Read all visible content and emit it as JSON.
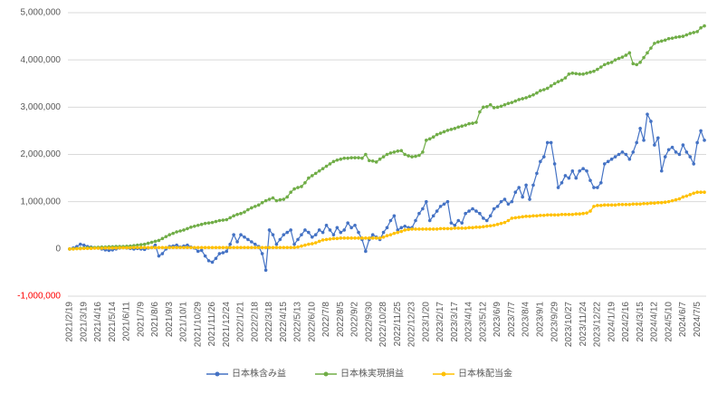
{
  "chart_data": {
    "type": "line",
    "categories": [
      "2021/2/19",
      null,
      null,
      null,
      "2021/3/19",
      null,
      null,
      null,
      "2021/4/16",
      null,
      null,
      null,
      "2021/5/14",
      null,
      null,
      null,
      "2021/6/11",
      null,
      null,
      null,
      "2021/7/9",
      null,
      null,
      null,
      "2021/8/6",
      null,
      null,
      null,
      "2021/9/3",
      null,
      null,
      null,
      "2021/10/1",
      null,
      null,
      null,
      "2021/10/29",
      null,
      null,
      null,
      "2021/11/26",
      null,
      null,
      null,
      "2021/12/24",
      null,
      null,
      null,
      "2022/1/21",
      null,
      null,
      null,
      "2022/2/18",
      null,
      null,
      null,
      "2022/3/18",
      null,
      null,
      null,
      "2022/4/15",
      null,
      null,
      null,
      "2022/5/13",
      null,
      null,
      null,
      "2022/6/10",
      null,
      null,
      null,
      "2022/7/8",
      null,
      null,
      null,
      "2022/8/5",
      null,
      null,
      null,
      "2022/9/2",
      null,
      null,
      null,
      "2022/9/30",
      null,
      null,
      null,
      "2022/10/28",
      null,
      null,
      null,
      "2022/11/25",
      null,
      null,
      null,
      "2022/12/23",
      null,
      null,
      null,
      "2023/1/20",
      null,
      null,
      null,
      "2023/2/17",
      null,
      null,
      null,
      "2023/3/17",
      null,
      null,
      null,
      "2023/4/14",
      null,
      null,
      null,
      "2023/5/12",
      null,
      null,
      null,
      "2023/6/9",
      null,
      null,
      null,
      "2023/7/7",
      null,
      null,
      null,
      "2023/8/4",
      null,
      null,
      null,
      "2023/9/1",
      null,
      null,
      null,
      "2023/9/29",
      null,
      null,
      null,
      "2023/10/27",
      null,
      null,
      null,
      "2023/11/24",
      null,
      null,
      null,
      "2023/12/22",
      null,
      null,
      null,
      "2024/1/19",
      null,
      null,
      null,
      "2024/2/16",
      null,
      null,
      null,
      "2024/3/15",
      null,
      null,
      null,
      "2024/4/12",
      null,
      null,
      null,
      "2024/5/10",
      null,
      null,
      null,
      "2024/6/7",
      null,
      null,
      null,
      "2024/7/5",
      null,
      null
    ],
    "series": [
      {
        "name": "日本株含み益",
        "color": "#4472c4",
        "values": [
          0,
          20000,
          50000,
          100000,
          80000,
          50000,
          40000,
          30000,
          20000,
          0,
          -20000,
          -30000,
          -20000,
          0,
          20000,
          30000,
          20000,
          10000,
          0,
          10000,
          0,
          -10000,
          20000,
          30000,
          80000,
          -150000,
          -100000,
          0,
          50000,
          60000,
          80000,
          40000,
          60000,
          80000,
          40000,
          20000,
          -50000,
          -30000,
          -150000,
          -250000,
          -280000,
          -200000,
          -100000,
          -80000,
          -50000,
          100000,
          300000,
          150000,
          300000,
          250000,
          200000,
          150000,
          100000,
          50000,
          -100000,
          -450000,
          400000,
          300000,
          100000,
          200000,
          300000,
          350000,
          400000,
          100000,
          200000,
          300000,
          400000,
          350000,
          250000,
          300000,
          400000,
          350000,
          500000,
          400000,
          300000,
          450000,
          350000,
          400000,
          550000,
          450000,
          500000,
          350000,
          200000,
          -50000,
          200000,
          300000,
          250000,
          200000,
          350000,
          450000,
          600000,
          700000,
          400000,
          450000,
          480000,
          450000,
          450000,
          600000,
          750000,
          850000,
          1000000,
          600000,
          700000,
          800000,
          900000,
          950000,
          1000000,
          550000,
          500000,
          600000,
          550000,
          750000,
          800000,
          850000,
          800000,
          750000,
          650000,
          600000,
          700000,
          850000,
          900000,
          1000000,
          1050000,
          950000,
          1000000,
          1200000,
          1300000,
          1100000,
          1350000,
          1050000,
          1350000,
          1600000,
          1850000,
          1950000,
          2250000,
          2250000,
          1800000,
          1300000,
          1400000,
          1550000,
          1500000,
          1650000,
          1500000,
          1650000,
          1700000,
          1650000,
          1450000,
          1300000,
          1300000,
          1400000,
          1800000,
          1850000,
          1900000,
          1950000,
          2000000,
          2050000,
          2000000,
          1900000,
          2050000,
          2250000,
          2550000,
          2300000,
          2850000,
          2700000,
          2200000,
          2350000,
          1650000,
          1950000,
          2100000,
          2150000,
          2050000,
          2000000,
          2200000,
          2050000,
          1950000,
          1800000,
          2250000,
          2500000,
          2300000
        ]
      },
      {
        "name": "日本株実現損益",
        "color": "#70ad47",
        "values": [
          0,
          5000,
          10000,
          15000,
          20000,
          25000,
          30000,
          30000,
          35000,
          40000,
          40000,
          45000,
          45000,
          50000,
          50000,
          50000,
          55000,
          60000,
          70000,
          80000,
          90000,
          100000,
          120000,
          140000,
          160000,
          180000,
          220000,
          260000,
          300000,
          330000,
          360000,
          380000,
          400000,
          430000,
          460000,
          480000,
          500000,
          520000,
          540000,
          550000,
          560000,
          580000,
          600000,
          610000,
          620000,
          660000,
          700000,
          730000,
          750000,
          780000,
          830000,
          870000,
          900000,
          930000,
          980000,
          1020000,
          1050000,
          1080000,
          1020000,
          1040000,
          1050000,
          1100000,
          1200000,
          1270000,
          1300000,
          1320000,
          1400000,
          1500000,
          1550000,
          1600000,
          1650000,
          1700000,
          1750000,
          1800000,
          1850000,
          1880000,
          1900000,
          1920000,
          1920000,
          1930000,
          1930000,
          1930000,
          1920000,
          2000000,
          1870000,
          1860000,
          1840000,
          1900000,
          1950000,
          2000000,
          2030000,
          2050000,
          2070000,
          2080000,
          2000000,
          1970000,
          1950000,
          1960000,
          1980000,
          2050000,
          2300000,
          2330000,
          2370000,
          2420000,
          2450000,
          2480000,
          2510000,
          2530000,
          2550000,
          2580000,
          2600000,
          2620000,
          2650000,
          2660000,
          2680000,
          2900000,
          3000000,
          3010000,
          3050000,
          2990000,
          3000000,
          3020000,
          3050000,
          3080000,
          3100000,
          3130000,
          3160000,
          3180000,
          3200000,
          3230000,
          3260000,
          3300000,
          3350000,
          3370000,
          3400000,
          3450000,
          3500000,
          3540000,
          3570000,
          3620000,
          3700000,
          3720000,
          3710000,
          3700000,
          3700000,
          3720000,
          3740000,
          3760000,
          3800000,
          3850000,
          3900000,
          3930000,
          3950000,
          4000000,
          4030000,
          4060000,
          4100000,
          4150000,
          3920000,
          3900000,
          3950000,
          4050000,
          4150000,
          4250000,
          4350000,
          4380000,
          4400000,
          4420000,
          4450000,
          4460000,
          4480000,
          4490000,
          4500000,
          4530000,
          4560000,
          4580000,
          4600000,
          4680000,
          4720000
        ]
      },
      {
        "name": "日本株配当金",
        "color": "#ffc000",
        "values": [
          0,
          0,
          5000,
          5000,
          10000,
          10000,
          10000,
          15000,
          15000,
          15000,
          20000,
          20000,
          20000,
          20000,
          25000,
          25000,
          25000,
          25000,
          30000,
          30000,
          30000,
          30000,
          30000,
          30000,
          30000,
          30000,
          30000,
          30000,
          30000,
          30000,
          30000,
          30000,
          30000,
          30000,
          30000,
          30000,
          30000,
          30000,
          30000,
          30000,
          30000,
          30000,
          30000,
          30000,
          30000,
          30000,
          30000,
          30000,
          30000,
          30000,
          30000,
          30000,
          30000,
          30000,
          30000,
          30000,
          30000,
          30000,
          30000,
          30000,
          30000,
          30000,
          30000,
          30000,
          40000,
          60000,
          80000,
          100000,
          110000,
          130000,
          160000,
          190000,
          200000,
          210000,
          220000,
          220000,
          230000,
          230000,
          230000,
          230000,
          230000,
          230000,
          230000,
          230000,
          230000,
          230000,
          230000,
          230000,
          250000,
          280000,
          300000,
          330000,
          350000,
          370000,
          400000,
          410000,
          420000,
          420000,
          420000,
          420000,
          420000,
          420000,
          420000,
          420000,
          430000,
          430000,
          430000,
          430000,
          440000,
          440000,
          440000,
          440000,
          450000,
          450000,
          460000,
          460000,
          470000,
          480000,
          490000,
          500000,
          520000,
          540000,
          560000,
          600000,
          650000,
          660000,
          670000,
          680000,
          690000,
          690000,
          700000,
          700000,
          710000,
          710000,
          720000,
          720000,
          720000,
          720000,
          730000,
          730000,
          730000,
          730000,
          740000,
          740000,
          750000,
          760000,
          800000,
          900000,
          920000,
          920000,
          930000,
          930000,
          930000,
          930000,
          940000,
          940000,
          940000,
          940000,
          950000,
          950000,
          950000,
          960000,
          960000,
          970000,
          970000,
          980000,
          980000,
          990000,
          1000000,
          1020000,
          1040000,
          1060000,
          1100000,
          1120000,
          1150000,
          1180000,
          1200000,
          1200000,
          1200000
        ]
      }
    ],
    "ylim": [
      -1000000,
      5000000
    ],
    "yticks": [
      {
        "value": -1000000,
        "label": "-1,000,000"
      },
      0,
      {
        "value": 1000000,
        "label": "1,000,000"
      },
      {
        "value": 2000000,
        "label": "2,000,000"
      },
      {
        "value": 3000000,
        "label": "3,000,000"
      },
      {
        "value": 4000000,
        "label": "4,000,000"
      },
      {
        "value": 5000000,
        "label": "5,000,000"
      }
    ],
    "grid": true,
    "negative_tick_color": "#ff0000",
    "legend": "bottom"
  }
}
